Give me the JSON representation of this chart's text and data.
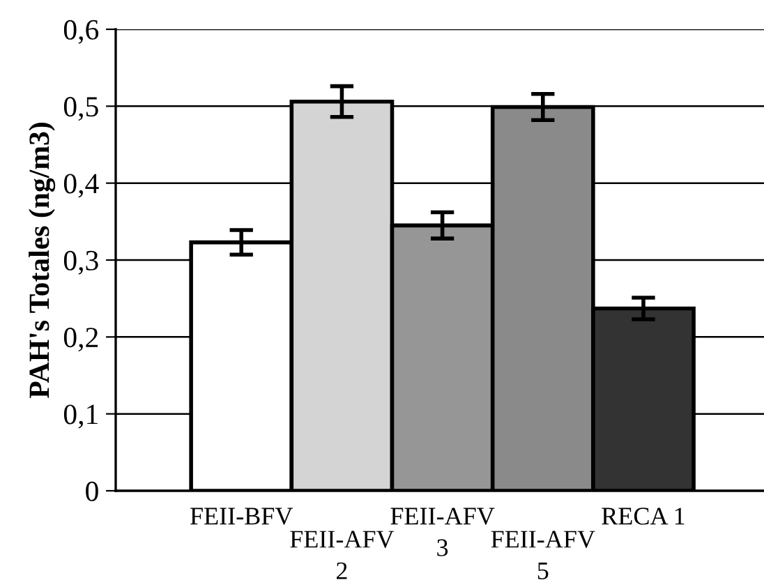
{
  "chart_data": {
    "type": "bar",
    "ylabel": "PAH's Totales (ng/m3)",
    "categories": [
      "FEII-BFV",
      "FEII-AFV\n2",
      "FEII-AFV\n3",
      "FEII-AFV\n5",
      "RECA 1"
    ],
    "values": [
      0.323,
      0.506,
      0.345,
      0.499,
      0.237
    ],
    "errors": [
      0.016,
      0.02,
      0.017,
      0.017,
      0.014
    ],
    "colors": [
      "#ffffff",
      "#d4d4d4",
      "#969696",
      "#8a8a8a",
      "#333333"
    ],
    "ylim": [
      0,
      0.6
    ],
    "yticks": [
      0,
      {
        "value": 0.1,
        "label": "0,1"
      },
      {
        "value": 0.2,
        "label": "0,2"
      },
      {
        "value": 0.3,
        "label": "0,3"
      },
      {
        "value": 0.4,
        "label": "0,4"
      },
      {
        "value": 0.5,
        "label": "0,5"
      },
      {
        "value": 0.6,
        "label": "0,6"
      }
    ],
    "grid": "y",
    "legend": false
  }
}
